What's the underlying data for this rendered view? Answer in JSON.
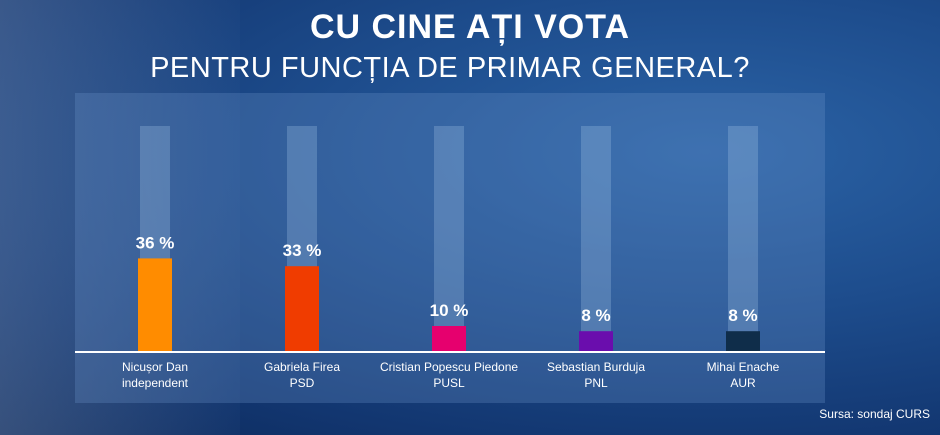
{
  "title": "CU CINE AȚI VOTA",
  "subtitle": "PENTRU FUNCȚIA DE PRIMAR GENERAL?",
  "source": "Sursa: sondaj CURS",
  "chart_data": {
    "type": "bar",
    "categories": [
      {
        "name": "Nicușor Dan",
        "party": "independent"
      },
      {
        "name": "Gabriela Firea",
        "party": "PSD"
      },
      {
        "name": "Cristian Popescu Piedone",
        "party": "PUSL"
      },
      {
        "name": "Sebastian Burduja",
        "party": "PNL"
      },
      {
        "name": "Mihai Enache",
        "party": "AUR"
      }
    ],
    "values": [
      36,
      33,
      10,
      8,
      8
    ],
    "value_labels": [
      "36 %",
      "33 %",
      "10 %",
      "8 %",
      "8 %"
    ],
    "colors": [
      "#ff8c00",
      "#f03c00",
      "#e6006e",
      "#6a0dad",
      "#0f2d4a"
    ],
    "ylim": [
      0,
      100
    ],
    "grid": false
  }
}
